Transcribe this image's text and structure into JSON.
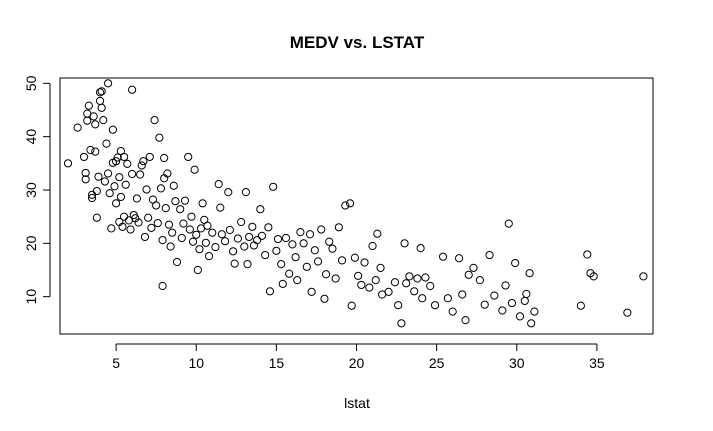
{
  "chart_data": {
    "type": "scatter",
    "title": "MEDV vs. LSTAT",
    "xlabel": "lstat",
    "ylabel": "",
    "xlim": [
      1.5,
      38.5
    ],
    "ylim": [
      3,
      51
    ],
    "x_ticks": [
      5,
      10,
      15,
      20,
      25,
      30,
      35
    ],
    "y_ticks": [
      10,
      20,
      30,
      40,
      50
    ],
    "grid": false,
    "legend": "none",
    "marker": "open-circle",
    "points": [
      [
        2.0,
        35
      ],
      [
        2.6,
        41.7
      ],
      [
        3.0,
        36.2
      ],
      [
        3.1,
        33.2
      ],
      [
        3.1,
        32
      ],
      [
        3.2,
        43
      ],
      [
        3.2,
        44.3
      ],
      [
        3.3,
        45.8
      ],
      [
        3.4,
        37.5
      ],
      [
        3.5,
        29.1
      ],
      [
        3.5,
        28.5
      ],
      [
        3.6,
        43.8
      ],
      [
        3.7,
        42.3
      ],
      [
        3.7,
        37.2
      ],
      [
        3.8,
        24.8
      ],
      [
        3.8,
        29.8
      ],
      [
        3.9,
        32.5
      ],
      [
        4.0,
        46.7
      ],
      [
        4.0,
        48.3
      ],
      [
        4.1,
        48.5
      ],
      [
        4.1,
        45.4
      ],
      [
        4.2,
        43.1
      ],
      [
        4.3,
        31.6
      ],
      [
        4.4,
        38.7
      ],
      [
        4.5,
        50.0
      ],
      [
        4.5,
        33.1
      ],
      [
        4.6,
        29.4
      ],
      [
        4.7,
        22.8
      ],
      [
        4.8,
        41.3
      ],
      [
        4.8,
        35.1
      ],
      [
        4.9,
        30.7
      ],
      [
        5.0,
        35.4
      ],
      [
        5.0,
        27.5
      ],
      [
        5.1,
        36.1
      ],
      [
        5.2,
        24.0
      ],
      [
        5.2,
        32.4
      ],
      [
        5.3,
        37.3
      ],
      [
        5.3,
        28.7
      ],
      [
        5.4,
        23.1
      ],
      [
        5.5,
        36.2
      ],
      [
        5.5,
        25.0
      ],
      [
        5.6,
        31.0
      ],
      [
        5.7,
        34.9
      ],
      [
        5.8,
        24.3
      ],
      [
        5.9,
        22.6
      ],
      [
        6.0,
        48.8
      ],
      [
        6.0,
        33.0
      ],
      [
        6.1,
        25.3
      ],
      [
        6.2,
        24.7
      ],
      [
        6.3,
        28.4
      ],
      [
        6.4,
        23.9
      ],
      [
        6.5,
        32.9
      ],
      [
        6.6,
        34.6
      ],
      [
        6.7,
        35.4
      ],
      [
        6.8,
        21.2
      ],
      [
        6.9,
        30.1
      ],
      [
        7.0,
        24.8
      ],
      [
        7.1,
        36.2
      ],
      [
        7.2,
        22.9
      ],
      [
        7.3,
        28.2
      ],
      [
        7.4,
        43.1
      ],
      [
        7.5,
        27.1
      ],
      [
        7.6,
        23.8
      ],
      [
        7.7,
        39.8
      ],
      [
        7.8,
        30.3
      ],
      [
        7.9,
        20.6
      ],
      [
        7.9,
        12.0
      ],
      [
        8.0,
        32.2
      ],
      [
        8.0,
        36.0
      ],
      [
        8.1,
        26.6
      ],
      [
        8.2,
        33.1
      ],
      [
        8.3,
        23.5
      ],
      [
        8.4,
        19.4
      ],
      [
        8.5,
        22.0
      ],
      [
        8.6,
        30.8
      ],
      [
        8.7,
        27.9
      ],
      [
        8.8,
        16.5
      ],
      [
        9.0,
        26.4
      ],
      [
        9.1,
        21.0
      ],
      [
        9.2,
        23.7
      ],
      [
        9.3,
        28.0
      ],
      [
        9.5,
        36.2
      ],
      [
        9.6,
        22.6
      ],
      [
        9.7,
        25.0
      ],
      [
        9.8,
        20.3
      ],
      [
        9.9,
        33.8
      ],
      [
        10.0,
        21.6
      ],
      [
        10.1,
        15.0
      ],
      [
        10.2,
        18.9
      ],
      [
        10.3,
        22.8
      ],
      [
        10.4,
        27.5
      ],
      [
        10.5,
        24.4
      ],
      [
        10.6,
        20.1
      ],
      [
        10.7,
        23.3
      ],
      [
        10.8,
        17.6
      ],
      [
        11.0,
        22.0
      ],
      [
        11.2,
        19.3
      ],
      [
        11.4,
        31.1
      ],
      [
        11.5,
        26.7
      ],
      [
        11.6,
        21.7
      ],
      [
        11.8,
        20.4
      ],
      [
        12.0,
        29.6
      ],
      [
        12.1,
        22.5
      ],
      [
        12.3,
        18.5
      ],
      [
        12.4,
        16.2
      ],
      [
        12.6,
        20.9
      ],
      [
        12.8,
        24.0
      ],
      [
        13.0,
        19.4
      ],
      [
        13.1,
        29.6
      ],
      [
        13.2,
        16.1
      ],
      [
        13.3,
        21.2
      ],
      [
        13.5,
        23.1
      ],
      [
        13.6,
        19.6
      ],
      [
        13.8,
        20.6
      ],
      [
        14.0,
        26.4
      ],
      [
        14.1,
        21.4
      ],
      [
        14.3,
        17.8
      ],
      [
        14.5,
        23.0
      ],
      [
        14.6,
        11.0
      ],
      [
        14.8,
        30.6
      ],
      [
        15.0,
        18.6
      ],
      [
        15.1,
        20.8
      ],
      [
        15.3,
        16.1
      ],
      [
        15.4,
        12.4
      ],
      [
        15.6,
        21.0
      ],
      [
        15.8,
        14.3
      ],
      [
        16.0,
        19.8
      ],
      [
        16.2,
        17.4
      ],
      [
        16.3,
        13.1
      ],
      [
        16.5,
        22.1
      ],
      [
        16.7,
        20.0
      ],
      [
        16.9,
        15.6
      ],
      [
        17.1,
        21.7
      ],
      [
        17.2,
        10.9
      ],
      [
        17.4,
        18.7
      ],
      [
        17.6,
        16.6
      ],
      [
        17.8,
        22.6
      ],
      [
        18.0,
        9.6
      ],
      [
        18.1,
        14.2
      ],
      [
        18.3,
        20.3
      ],
      [
        18.5,
        19.0
      ],
      [
        18.7,
        13.4
      ],
      [
        18.9,
        23.0
      ],
      [
        19.1,
        16.8
      ],
      [
        19.3,
        27.1
      ],
      [
        19.6,
        27.5
      ],
      [
        19.7,
        8.3
      ],
      [
        19.9,
        17.3
      ],
      [
        20.1,
        13.9
      ],
      [
        20.3,
        12.2
      ],
      [
        20.5,
        16.4
      ],
      [
        20.8,
        11.7
      ],
      [
        21.0,
        19.5
      ],
      [
        21.2,
        13.1
      ],
      [
        21.3,
        21.8
      ],
      [
        21.5,
        15.4
      ],
      [
        21.6,
        10.4
      ],
      [
        22.0,
        10.9
      ],
      [
        22.4,
        12.7
      ],
      [
        22.6,
        8.4
      ],
      [
        22.8,
        5.0
      ],
      [
        23.0,
        20.0
      ],
      [
        23.1,
        12.5
      ],
      [
        23.3,
        13.8
      ],
      [
        23.6,
        11.0
      ],
      [
        23.8,
        13.4
      ],
      [
        24.0,
        19.1
      ],
      [
        24.1,
        9.7
      ],
      [
        24.3,
        13.6
      ],
      [
        24.6,
        12.0
      ],
      [
        24.9,
        8.4
      ],
      [
        25.4,
        17.5
      ],
      [
        25.7,
        9.7
      ],
      [
        26.0,
        7.2
      ],
      [
        26.4,
        17.2
      ],
      [
        26.6,
        10.4
      ],
      [
        26.8,
        5.6
      ],
      [
        27.0,
        14.1
      ],
      [
        27.3,
        15.4
      ],
      [
        27.7,
        13.1
      ],
      [
        28.0,
        8.5
      ],
      [
        28.3,
        17.8
      ],
      [
        28.6,
        10.2
      ],
      [
        29.1,
        7.4
      ],
      [
        29.3,
        12.1
      ],
      [
        29.5,
        23.7
      ],
      [
        29.7,
        8.8
      ],
      [
        29.9,
        16.3
      ],
      [
        30.2,
        6.3
      ],
      [
        30.5,
        9.2
      ],
      [
        30.6,
        10.5
      ],
      [
        30.8,
        14.4
      ],
      [
        30.9,
        5.0
      ],
      [
        31.1,
        7.2
      ],
      [
        34.0,
        8.3
      ],
      [
        34.4,
        17.9
      ],
      [
        34.6,
        14.4
      ],
      [
        34.8,
        13.8
      ],
      [
        36.9,
        7.0
      ],
      [
        37.9,
        13.8
      ]
    ]
  }
}
